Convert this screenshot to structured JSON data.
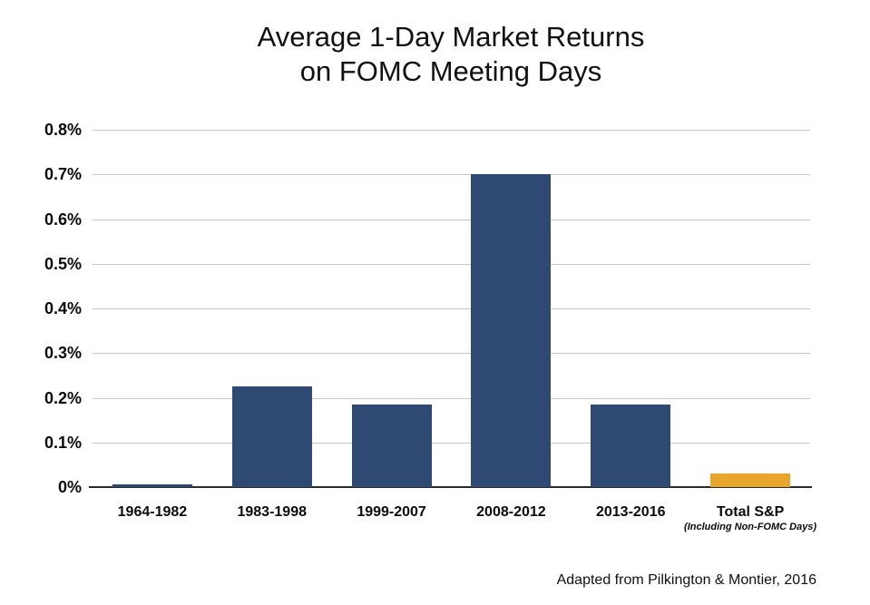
{
  "title": {
    "line1": "Average 1-Day Market Returns",
    "line2": "on FOMC Meeting Days"
  },
  "attribution": "Adapted from Pilkington & Montier, 2016",
  "colors": {
    "bar_primary": "#2e4a72",
    "bar_highlight": "#e9a62c",
    "gridline": "#c7c7c7",
    "axis_line": "#2b2b2b",
    "text": "#0b0b0b"
  },
  "chart_data": {
    "type": "bar",
    "title": "Average 1-Day Market Returns on FOMC Meeting Days",
    "categories": [
      "1964-1982",
      "1983-1998",
      "1999-2007",
      "2008-2012",
      "2013-2016",
      "Total S&P"
    ],
    "category_sublabels": [
      "",
      "",
      "",
      "",
      "",
      "(Including Non-FOMC Days)"
    ],
    "values": [
      0.006,
      0.225,
      0.185,
      0.7,
      0.185,
      0.03
    ],
    "unit": "%",
    "ylim": [
      0,
      0.8
    ],
    "yticks": [
      0,
      0.1,
      0.2,
      0.3,
      0.4,
      0.5,
      0.6,
      0.7,
      0.8
    ],
    "ytick_labels": [
      "0%",
      "0.1%",
      "0.2%",
      "0.3%",
      "0.4%",
      "0.5%",
      "0.6%",
      "0.7%",
      "0.8%"
    ],
    "grid": "horizontal",
    "legend": "none",
    "bar_colors": [
      "#2e4a72",
      "#2e4a72",
      "#2e4a72",
      "#2e4a72",
      "#2e4a72",
      "#e9a62c"
    ]
  }
}
